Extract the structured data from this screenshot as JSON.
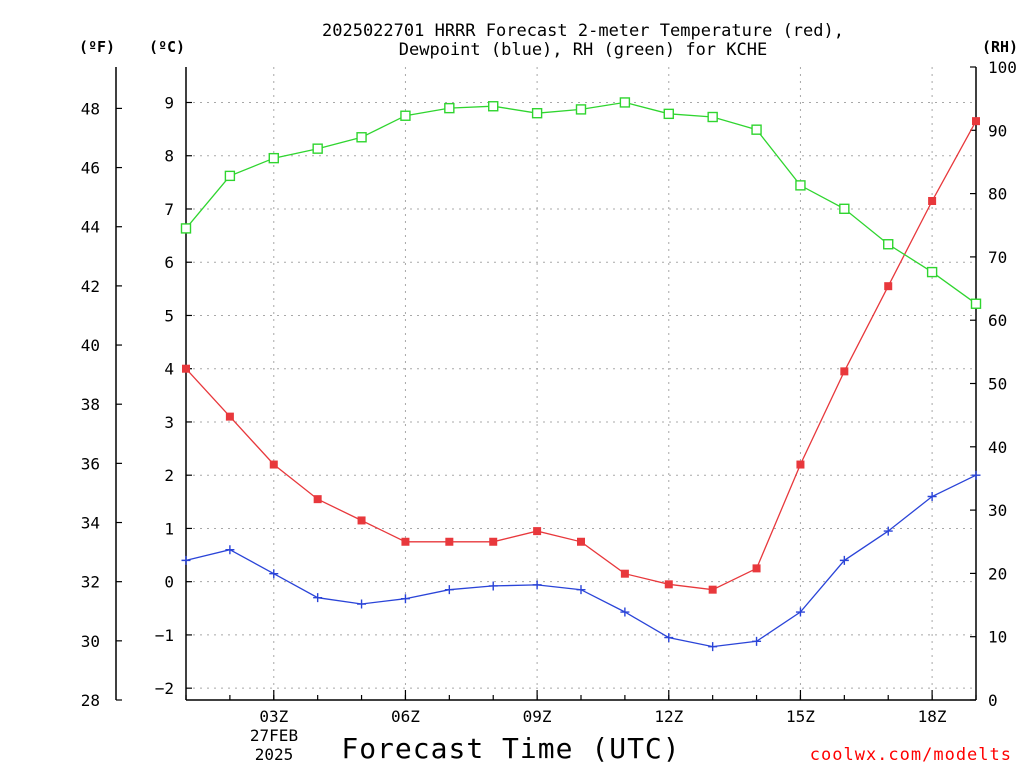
{
  "title": {
    "line1": "2025022701 HRRR Forecast 2-meter Temperature (red),",
    "line2": "Dewpoint (blue), RH (green) for KCHE"
  },
  "credit": "coolwx.com/modelts",
  "colors": {
    "temperature": "#e8383c",
    "dewpoint": "#2a44d8",
    "rh": "#2fd52f",
    "grid": "#a8a8a8"
  },
  "chart_data": {
    "type": "line",
    "title": "2025022701 HRRR Forecast 2-meter Temperature (red), Dewpoint (blue), RH (green) for KCHE",
    "xlabel": "Forecast Time (UTC)",
    "x_hours": [
      1,
      2,
      3,
      4,
      5,
      6,
      7,
      8,
      9,
      10,
      11,
      12,
      13,
      14,
      15,
      16,
      17,
      18,
      19
    ],
    "xlim": [
      1,
      19
    ],
    "x_ticks": [
      {
        "hour": 3,
        "label": "03Z"
      },
      {
        "hour": 6,
        "label": "06Z"
      },
      {
        "hour": 9,
        "label": "09Z"
      },
      {
        "hour": 12,
        "label": "12Z"
      },
      {
        "hour": 15,
        "label": "15Z"
      },
      {
        "hour": 18,
        "label": "18Z"
      }
    ],
    "date_label": [
      "27FEB",
      "2025"
    ],
    "axes": {
      "left_f": {
        "unit": "(ºF)",
        "min": 28,
        "max": 49.4,
        "ticks": [
          28,
          30,
          32,
          34,
          36,
          38,
          40,
          42,
          44,
          46,
          48
        ]
      },
      "left_c": {
        "unit": "(ºC)",
        "min": -2.2222,
        "max": 9.6667,
        "ticks": [
          -2,
          -1,
          0,
          1,
          2,
          3,
          4,
          5,
          6,
          7,
          8,
          9
        ]
      },
      "right_rh": {
        "unit": "(RH)",
        "min": 0,
        "max": 100,
        "ticks": [
          0,
          10,
          20,
          30,
          40,
          50,
          60,
          70,
          80,
          90,
          100
        ]
      }
    },
    "grid": true,
    "series": [
      {
        "name": "Temperature (red)",
        "axis": "celsius",
        "marker": "filled-square",
        "values": [
          4.0,
          3.1,
          2.2,
          1.55,
          1.15,
          0.75,
          0.75,
          0.75,
          0.95,
          0.75,
          0.15,
          -0.05,
          -0.15,
          0.25,
          2.2,
          3.95,
          5.55,
          7.15,
          8.65
        ]
      },
      {
        "name": "Dewpoint (blue)",
        "axis": "celsius",
        "marker": "plus",
        "values": [
          0.4,
          0.6,
          0.15,
          -0.3,
          -0.42,
          -0.32,
          -0.15,
          -0.08,
          -0.06,
          -0.15,
          -0.57,
          -1.05,
          -1.22,
          -1.12,
          -0.57,
          0.4,
          0.95,
          1.6,
          2.0
        ]
      },
      {
        "name": "RH (green)",
        "axis": "rh",
        "marker": "open-square",
        "values": [
          74.5,
          82.8,
          85.6,
          87.1,
          88.9,
          92.3,
          93.5,
          93.8,
          92.7,
          93.3,
          94.4,
          92.6,
          92.1,
          90.1,
          81.3,
          77.6,
          72.0,
          67.6,
          62.6
        ]
      }
    ]
  }
}
